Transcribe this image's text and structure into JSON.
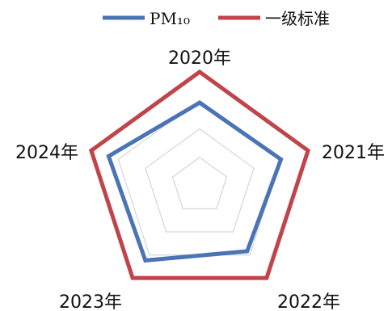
{
  "chart_data": {
    "type": "radar",
    "categories": [
      "2020年",
      "2021年",
      "2022年",
      "2023年",
      "2024年"
    ],
    "series": [
      {
        "name": "PM₁₀",
        "color": "#4a74b4",
        "values": [
          73,
          75,
          71,
          81,
          84
        ]
      },
      {
        "name": "一级标准",
        "color": "#c0444a",
        "values": [
          100,
          100,
          100,
          100,
          100
        ]
      }
    ],
    "rlim": [
      0,
      100
    ],
    "gridlines": [
      25,
      50,
      75
    ],
    "grid": true,
    "legend": "top"
  }
}
